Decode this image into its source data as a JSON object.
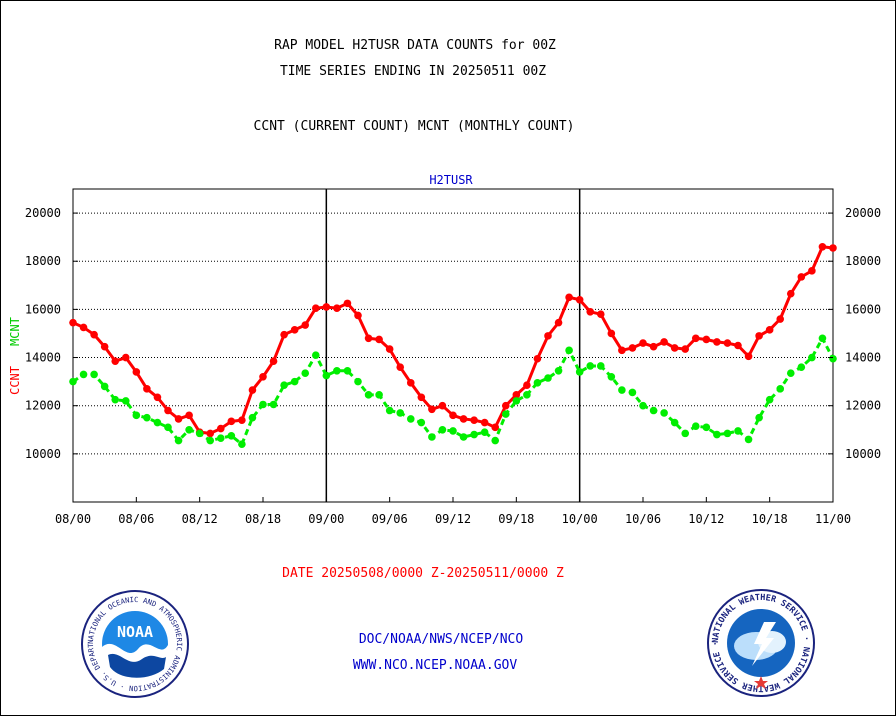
{
  "header": {
    "line1": "RAP MODEL H2TUSR DATA COUNTS for 00Z",
    "line2": "TIME SERIES ENDING IN 20250511 00Z",
    "line3": "CCNT (CURRENT COUNT) MCNT (MONTHLY COUNT)"
  },
  "footer": {
    "date_range": "DATE 20250508/0000 Z-20250511/0000 Z",
    "org": "DOC/NOAA/NWS/NCEP/NCO",
    "url": "WWW.NCO.NCEP.NOAA.GOV"
  },
  "logos": {
    "left_text": "NOAA",
    "left_ring": "NATIONAL OCEANIC AND ATMOSPHERIC ADMINISTRATION · U.S. DEPARTMENT OF COMMERCE ·",
    "right_ring": "NATIONAL WEATHER SERVICE · NATIONAL WEATHER SERVICE ·"
  },
  "colors": {
    "ccnt": "#ff0000",
    "mcnt": "#00ee00",
    "title_blue": "#0000cc",
    "frame": "#000000"
  },
  "chart_data": {
    "type": "line",
    "title": "H2TUSR",
    "ylabel_parts": [
      "CCNT",
      "MCNT"
    ],
    "ylim": [
      8000,
      21000
    ],
    "yticks": [
      10000,
      12000,
      14000,
      16000,
      18000,
      20000
    ],
    "xlim": [
      0,
      72
    ],
    "xtick_values": [
      0,
      6,
      12,
      18,
      24,
      30,
      36,
      42,
      48,
      54,
      60,
      66,
      72
    ],
    "xtick_labels": [
      "08/00",
      "08/06",
      "08/12",
      "08/18",
      "09/00",
      "09/06",
      "09/12",
      "09/18",
      "10/00",
      "10/06",
      "10/12",
      "10/18",
      "11/00"
    ],
    "day_boundaries": [
      24,
      48
    ],
    "grid": true,
    "series": [
      {
        "name": "CCNT",
        "color": "#ff0000",
        "x": [
          0,
          1,
          2,
          3,
          4,
          5,
          6,
          7,
          8,
          9,
          10,
          11,
          12,
          13,
          14,
          15,
          16,
          17,
          18,
          19,
          20,
          21,
          22,
          23,
          24,
          25,
          26,
          27,
          28,
          29,
          30,
          31,
          32,
          33,
          34,
          35,
          36,
          37,
          38,
          39,
          40,
          41,
          42,
          43,
          44,
          45,
          46,
          47,
          48,
          49,
          50,
          51,
          52,
          53,
          54,
          55,
          56,
          57,
          58,
          59,
          60,
          61,
          62,
          63,
          64,
          65,
          66,
          67,
          68,
          69,
          70,
          71,
          72
        ],
        "values": [
          15450,
          15250,
          14950,
          14450,
          13850,
          14000,
          13400,
          12700,
          12350,
          11800,
          11450,
          11600,
          10900,
          10850,
          11050,
          11350,
          11400,
          12650,
          13200,
          13850,
          14950,
          15150,
          15350,
          16050,
          16100,
          16050,
          16250,
          15750,
          14800,
          14750,
          14350,
          13600,
          12950,
          12350,
          11850,
          12000,
          11600,
          11450,
          11400,
          11300,
          11100,
          12000,
          12450,
          12850,
          13950,
          14900,
          15450,
          16500,
          16400,
          15900,
          15800,
          15000,
          14300,
          14400,
          14600,
          14450,
          14650,
          14400,
          14350,
          14800,
          14750,
          14650,
          14600,
          14500,
          14050,
          14900,
          15150,
          15600,
          16650,
          17350,
          17600,
          18600,
          18550
        ]
      },
      {
        "name": "MCNT",
        "color": "#00ee00",
        "x": [
          0,
          1,
          2,
          3,
          4,
          5,
          6,
          7,
          8,
          9,
          10,
          11,
          12,
          13,
          14,
          15,
          16,
          17,
          18,
          19,
          20,
          21,
          22,
          23,
          24,
          25,
          26,
          27,
          28,
          29,
          30,
          31,
          32,
          33,
          34,
          35,
          36,
          37,
          38,
          39,
          40,
          41,
          42,
          43,
          44,
          45,
          46,
          47,
          48,
          49,
          50,
          51,
          52,
          53,
          54,
          55,
          56,
          57,
          58,
          59,
          60,
          61,
          62,
          63,
          64,
          65,
          66,
          67,
          68,
          69,
          70,
          71,
          72
        ],
        "values": [
          13000,
          13300,
          13300,
          12800,
          12250,
          12200,
          11600,
          11500,
          11300,
          11100,
          10550,
          11000,
          10850,
          10550,
          10650,
          10750,
          10400,
          11500,
          12050,
          12050,
          12850,
          13000,
          13350,
          14100,
          13250,
          13450,
          13450,
          13000,
          12450,
          12450,
          11800,
          11700,
          11450,
          11300,
          10700,
          11000,
          10950,
          10700,
          10800,
          10900,
          10550,
          11650,
          12200,
          12450,
          12950,
          13150,
          13450,
          14300,
          13400,
          13650,
          13650,
          13200,
          12650,
          12550,
          12000,
          11800,
          11700,
          11300,
          10850,
          11150,
          11100,
          10800,
          10850,
          10950,
          10600,
          11500,
          12250,
          12700,
          13350,
          13600,
          14000,
          14800,
          13950
        ]
      }
    ]
  }
}
